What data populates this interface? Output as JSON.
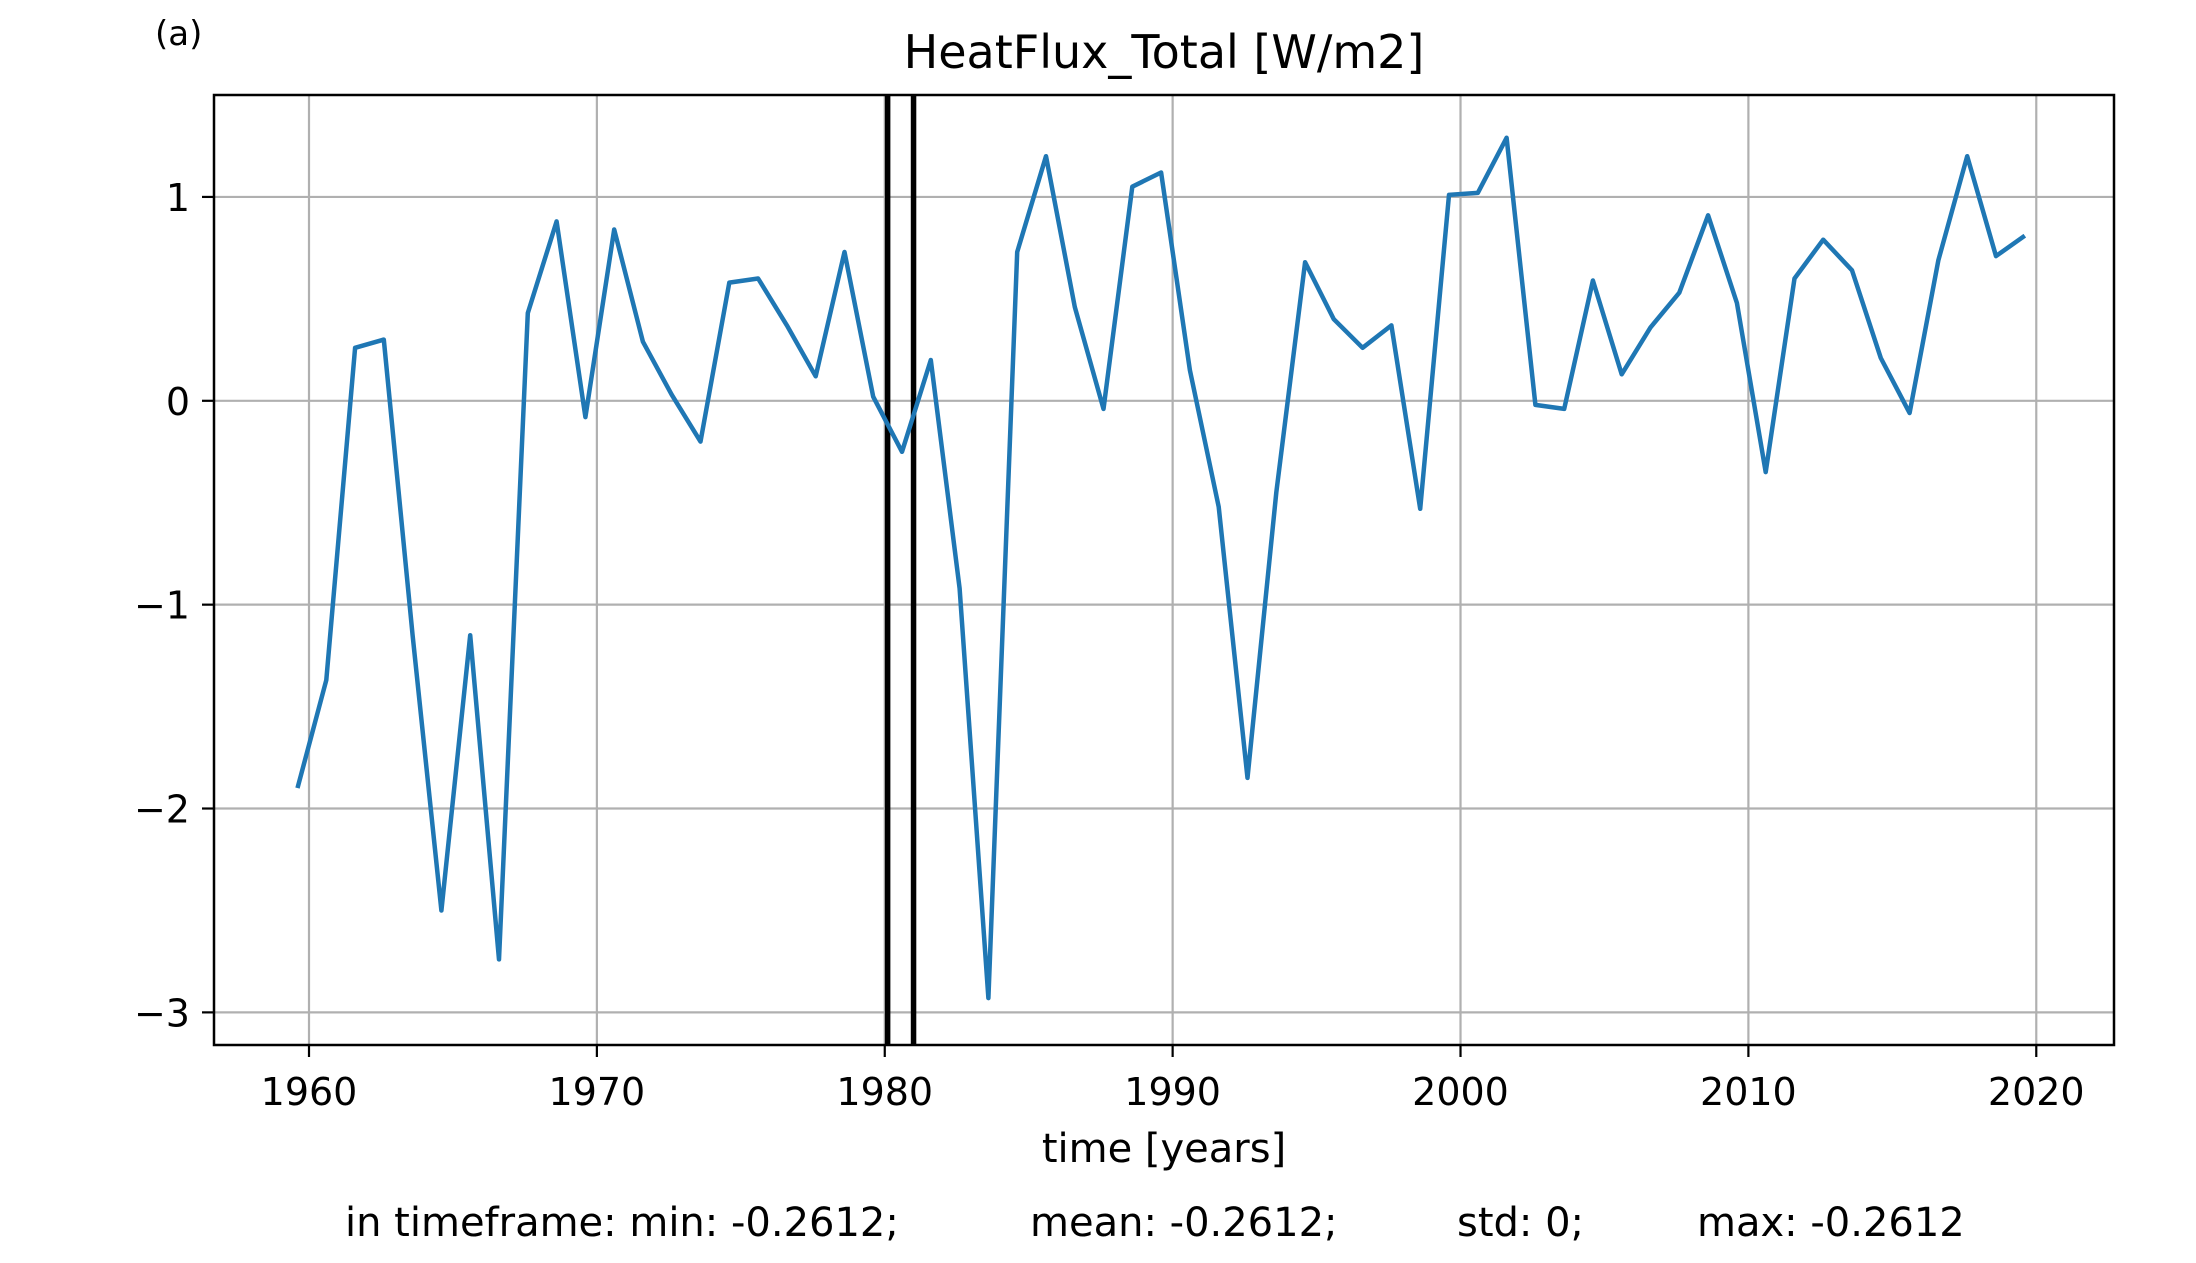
{
  "panel_label": "(a)",
  "stats": {
    "min": "in timeframe: min: -0.2612;",
    "mean": "mean: -0.2612;",
    "std": "std: 0;",
    "max": "max: -0.2612"
  },
  "chart_data": {
    "type": "line",
    "title": "HeatFlux_Total [W/m2]",
    "xlabel": "time [years]",
    "ylabel": "",
    "xlim": [
      1956.7,
      2022.7
    ],
    "ylim": [
      -3.16,
      1.5
    ],
    "xticks": [
      1960,
      1970,
      1980,
      1990,
      2000,
      2010,
      2020
    ],
    "yticks": [
      -3,
      -2,
      -1,
      0,
      1
    ],
    "ytick_labels": [
      "−3",
      "−2",
      "−1",
      "0",
      "1"
    ],
    "grid": true,
    "line_color": "#1f77b4",
    "vlines": [
      1980.1,
      1981.0
    ],
    "vline_color": "#000000",
    "series": [
      {
        "x": [
          1959.6,
          1960.6,
          1961.6,
          1962.6,
          1963.6,
          1964.6,
          1965.6,
          1966.6,
          1967.6,
          1968.6,
          1969.6,
          1970.6,
          1971.6,
          1972.6,
          1973.6,
          1974.6,
          1975.6,
          1976.6,
          1977.6,
          1978.6,
          1979.6,
          1980.6,
          1981.6,
          1982.6,
          1983.6,
          1984.6,
          1985.6,
          1986.6,
          1987.6,
          1988.6,
          1989.6,
          1990.6,
          1991.6,
          1992.6,
          1993.6,
          1994.6,
          1995.6,
          1996.6,
          1997.6,
          1998.6,
          1999.6,
          2000.6,
          2001.6,
          2002.6,
          2003.6,
          2004.6,
          2005.6,
          2006.6,
          2007.6,
          2008.6,
          2009.6,
          2010.6,
          2011.6,
          2012.6,
          2013.6,
          2014.6,
          2015.6,
          2016.6,
          2017.6,
          2018.6,
          2019.6
        ],
        "y": [
          -1.9,
          -1.37,
          0.26,
          0.3,
          -1.15,
          -2.5,
          -1.15,
          -2.74,
          0.43,
          0.88,
          -0.08,
          0.84,
          0.29,
          0.03,
          -0.2,
          0.58,
          0.6,
          0.37,
          0.12,
          0.73,
          0.02,
          -0.25,
          0.2,
          -0.92,
          -2.93,
          0.73,
          1.2,
          0.46,
          -0.04,
          1.05,
          1.12,
          0.15,
          -0.52,
          -1.85,
          -0.45,
          0.68,
          0.4,
          0.26,
          0.37,
          -0.53,
          1.01,
          1.02,
          1.29,
          -0.02,
          -0.04,
          0.59,
          0.13,
          0.36,
          0.53,
          0.91,
          0.48,
          -0.35,
          0.6,
          0.79,
          0.64,
          0.21,
          -0.06,
          0.69,
          1.2,
          0.71,
          0.81
        ]
      }
    ]
  }
}
